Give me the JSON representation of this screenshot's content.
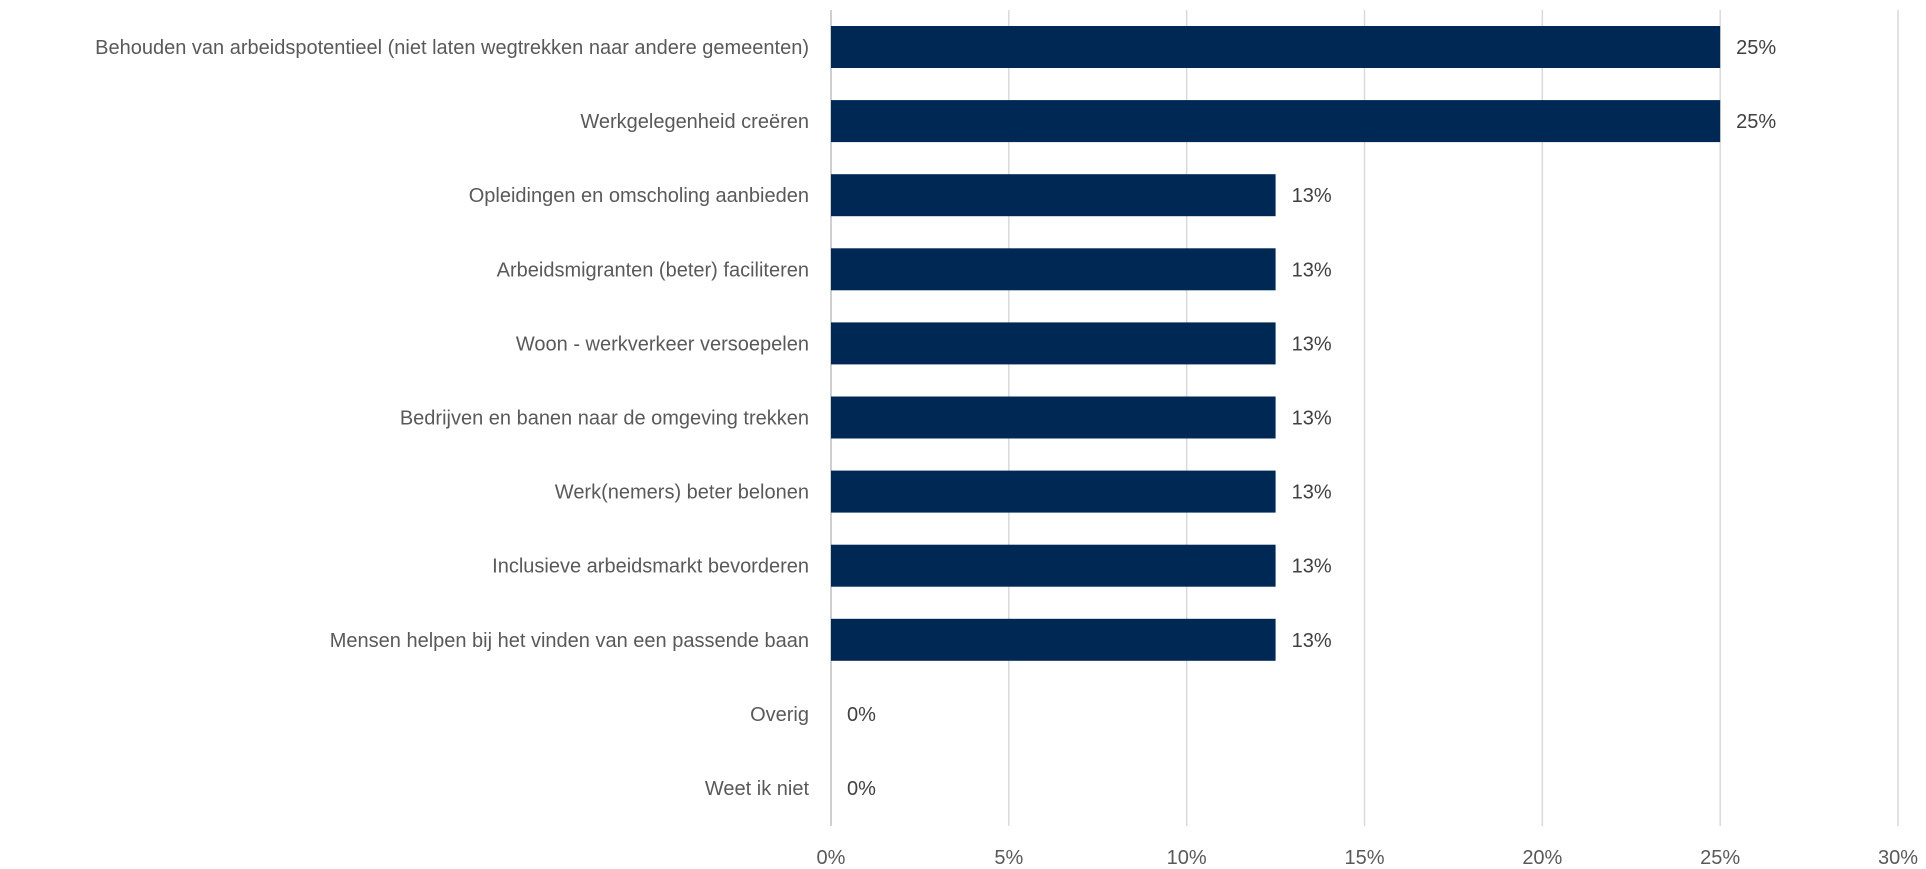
{
  "chart_data": {
    "type": "bar",
    "orientation": "horizontal",
    "categories": [
      "Behouden van arbeidspotentieel (niet laten wegtrekken naar andere gemeenten)",
      "Werkgelegenheid creëren",
      "Opleidingen en omscholing aanbieden",
      "Arbeidsmigranten (beter) faciliteren",
      "Woon - werkverkeer versoepelen",
      "Bedrijven en banen naar de omgeving trekken",
      "Werk(nemers) beter belonen",
      "Inclusieve arbeidsmarkt bevorderen",
      "Mensen helpen bij het vinden van een passende baan",
      "Overig",
      "Weet ik niet"
    ],
    "values": [
      25,
      25,
      12.5,
      12.5,
      12.5,
      12.5,
      12.5,
      12.5,
      12.5,
      0,
      0
    ],
    "value_labels": [
      "25%",
      "25%",
      "13%",
      "13%",
      "13%",
      "13%",
      "13%",
      "13%",
      "13%",
      "0%",
      "0%"
    ],
    "x_ticks": [
      "0%",
      "5%",
      "10%",
      "15%",
      "20%",
      "25%",
      "30%"
    ],
    "xlim": [
      0,
      30
    ],
    "grid": true,
    "bar_color": "#002855",
    "title": "",
    "xlabel": "",
    "ylabel": ""
  }
}
